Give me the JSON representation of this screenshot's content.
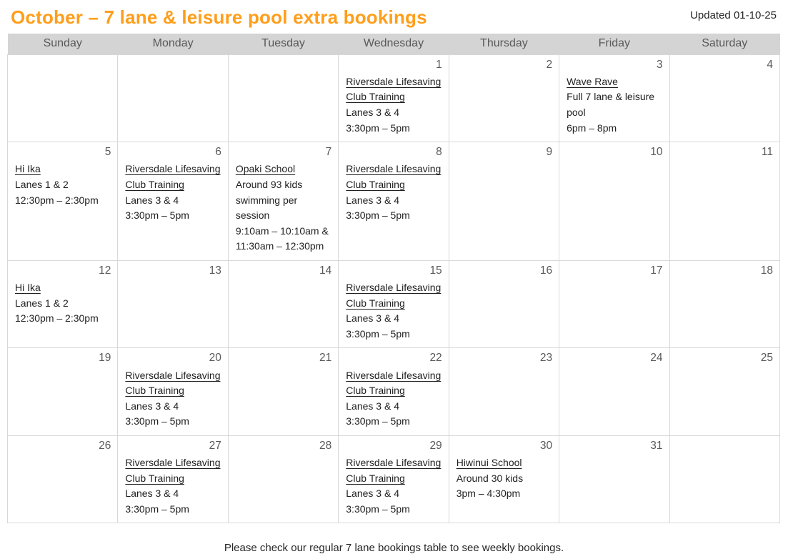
{
  "page": {
    "title": "October – 7 lane & leisure pool extra bookings",
    "updated": "Updated 01-10-25",
    "footer": "Please check our regular 7 lane bookings table to see weekly bookings."
  },
  "colors": {
    "title_orange": "#ff9e1b",
    "header_background": "#d4d4d4",
    "header_text": "#595959",
    "day_number_text": "#595959",
    "event_text": "#1f1f1f",
    "cell_border": "#d8d8d8"
  },
  "calendar": {
    "day_headers": [
      "Sunday",
      "Monday",
      "Tuesday",
      "Wednesday",
      "Thursday",
      "Friday",
      "Saturday"
    ],
    "weeks": [
      {
        "days": [
          {
            "number": "",
            "events": []
          },
          {
            "number": "",
            "events": []
          },
          {
            "number": "",
            "events": []
          },
          {
            "number": "1",
            "events": [
              {
                "title": "Riversdale Lifesaving Club Training",
                "details": [
                  "Lanes 3 & 4",
                  "3:30pm – 5pm"
                ]
              }
            ]
          },
          {
            "number": "2",
            "events": []
          },
          {
            "number": "3",
            "events": [
              {
                "title": "Wave Rave",
                "details": [
                  "Full 7 lane & leisure pool",
                  "6pm – 8pm"
                ]
              }
            ]
          },
          {
            "number": "4",
            "events": []
          }
        ]
      },
      {
        "days": [
          {
            "number": "5",
            "events": [
              {
                "title": "Hi Ika",
                "details": [
                  "Lanes 1 & 2",
                  "12:30pm – 2:30pm"
                ]
              }
            ]
          },
          {
            "number": "6",
            "events": [
              {
                "title": "Riversdale Lifesaving Club Training",
                "details": [
                  "Lanes 3 & 4",
                  "3:30pm – 5pm"
                ]
              }
            ]
          },
          {
            "number": "7",
            "events": [
              {
                "title": "Opaki School",
                "details": [
                  "Around 93 kids swimming per session",
                  "9:10am – 10:10am & 11:30am – 12:30pm"
                ]
              }
            ]
          },
          {
            "number": "8",
            "events": [
              {
                "title": "Riversdale Lifesaving Club Training",
                "details": [
                  "Lanes 3 & 4",
                  "3:30pm – 5pm"
                ]
              }
            ]
          },
          {
            "number": "9",
            "events": []
          },
          {
            "number": "10",
            "events": []
          },
          {
            "number": "11",
            "events": []
          }
        ]
      },
      {
        "days": [
          {
            "number": "12",
            "events": [
              {
                "title": "Hi Ika",
                "details": [
                  "Lanes 1 & 2",
                  "12:30pm – 2:30pm"
                ]
              }
            ]
          },
          {
            "number": "13",
            "events": []
          },
          {
            "number": "14",
            "events": []
          },
          {
            "number": "15",
            "events": [
              {
                "title": "Riversdale Lifesaving Club Training",
                "details": [
                  "Lanes 3 & 4",
                  "3:30pm – 5pm"
                ]
              }
            ]
          },
          {
            "number": "16",
            "events": []
          },
          {
            "number": "17",
            "events": []
          },
          {
            "number": "18",
            "events": []
          }
        ]
      },
      {
        "days": [
          {
            "number": "19",
            "events": []
          },
          {
            "number": "20",
            "events": [
              {
                "title": "Riversdale Lifesaving Club Training",
                "details": [
                  "Lanes 3 & 4",
                  "3:30pm – 5pm"
                ]
              }
            ]
          },
          {
            "number": "21",
            "events": []
          },
          {
            "number": "22",
            "events": [
              {
                "title": "Riversdale Lifesaving Club Training",
                "details": [
                  "Lanes 3 & 4",
                  "3:30pm – 5pm"
                ]
              }
            ]
          },
          {
            "number": "23",
            "events": []
          },
          {
            "number": "24",
            "events": []
          },
          {
            "number": "25",
            "events": []
          }
        ]
      },
      {
        "days": [
          {
            "number": "26",
            "events": []
          },
          {
            "number": "27",
            "events": [
              {
                "title": "Riversdale Lifesaving Club Training",
                "details": [
                  "Lanes 3 & 4",
                  "3:30pm – 5pm"
                ]
              }
            ]
          },
          {
            "number": "28",
            "events": []
          },
          {
            "number": "29",
            "events": [
              {
                "title": "Riversdale Lifesaving Club Training",
                "details": [
                  "Lanes 3 & 4",
                  "3:30pm – 5pm"
                ]
              }
            ]
          },
          {
            "number": "30",
            "events": [
              {
                "title": "Hiwinui School",
                "details": [
                  "Around 30 kids",
                  "3pm – 4:30pm"
                ]
              }
            ]
          },
          {
            "number": "31",
            "events": []
          },
          {
            "number": "",
            "events": []
          }
        ]
      }
    ]
  }
}
